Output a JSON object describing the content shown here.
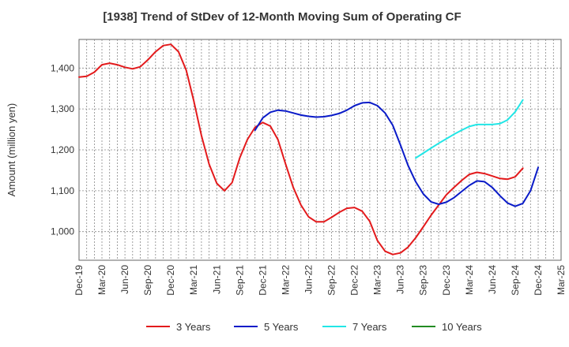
{
  "chart_data": {
    "type": "line",
    "title": "[1938]  Trend of StDev of 12-Month Moving Sum of Operating CF",
    "xlabel": "",
    "ylabel": "Amount (million yen)",
    "ylim": [
      930,
      1470
    ],
    "y_ticks": [
      1000,
      1100,
      1200,
      1300,
      1400
    ],
    "y_tick_labels": [
      "1,000",
      "1,100",
      "1,200",
      "1,300",
      "1,400"
    ],
    "x_start": "Dec-19",
    "x_end": "Mar-25",
    "x_tick_labels": [
      "Dec-19",
      "Mar-20",
      "Jun-20",
      "Sep-20",
      "Dec-20",
      "Mar-21",
      "Jun-21",
      "Sep-21",
      "Dec-21",
      "Mar-22",
      "Jun-22",
      "Sep-22",
      "Dec-22",
      "Mar-23",
      "Jun-23",
      "Sep-23",
      "Dec-23",
      "Mar-24",
      "Jun-24",
      "Sep-24",
      "Dec-24",
      "Mar-25"
    ],
    "grid": true,
    "legend_position": "bottom",
    "series": [
      {
        "name": "3 Years",
        "color": "#e31a1c",
        "start": "Dec-19",
        "values": [
          1378,
          1380,
          1390,
          1408,
          1412,
          1408,
          1402,
          1398,
          1403,
          1420,
          1440,
          1455,
          1458,
          1440,
          1395,
          1320,
          1235,
          1165,
          1118,
          1100,
          1120,
          1180,
          1225,
          1255,
          1267,
          1258,
          1225,
          1165,
          1108,
          1065,
          1036,
          1024,
          1024,
          1035,
          1047,
          1057,
          1059,
          1050,
          1025,
          978,
          952,
          944,
          948,
          962,
          985,
          1012,
          1040,
          1065,
          1090,
          1108,
          1125,
          1140,
          1145,
          1142,
          1136,
          1130,
          1128,
          1134,
          1155
        ]
      },
      {
        "name": "5 Years",
        "color": "#0a1bc8",
        "start": "Nov-21",
        "values": [
          1248,
          1278,
          1292,
          1297,
          1295,
          1290,
          1285,
          1282,
          1280,
          1281,
          1284,
          1289,
          1297,
          1308,
          1315,
          1316,
          1308,
          1290,
          1260,
          1212,
          1162,
          1122,
          1092,
          1073,
          1067,
          1072,
          1083,
          1098,
          1113,
          1124,
          1122,
          1108,
          1088,
          1070,
          1062,
          1069,
          1100,
          1157
        ]
      },
      {
        "name": "7 Years",
        "color": "#22e6e6",
        "start": "Aug-23",
        "values": [
          1180,
          1192,
          1204,
          1216,
          1227,
          1238,
          1248,
          1257,
          1262,
          1262,
          1262,
          1264,
          1273,
          1293,
          1322
        ]
      },
      {
        "name": "10 Years",
        "color": "#228b22",
        "start": "Dec-19",
        "values": []
      }
    ]
  }
}
